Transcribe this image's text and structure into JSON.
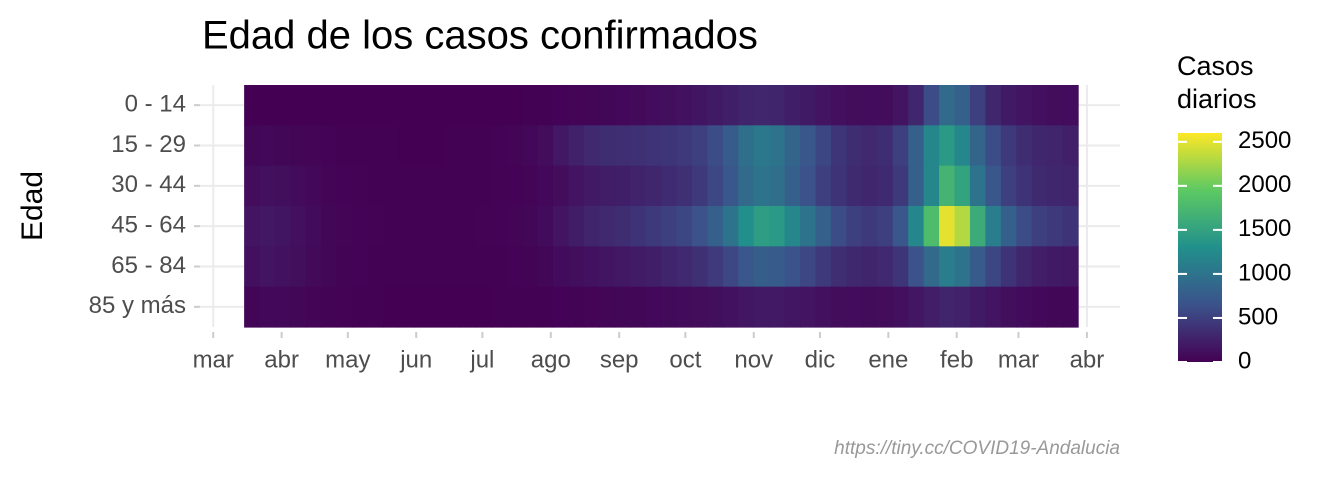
{
  "chart_data": {
    "type": "heatmap",
    "title": "Edad de los casos confirmados",
    "ylabel": "Edad",
    "caption": "https://tiny.cc/COVID19-Andalucia",
    "legend_title": [
      "Casos",
      "diarios"
    ],
    "x": [
      14,
      21,
      28,
      35,
      42,
      49,
      56,
      63,
      70,
      77,
      84,
      91,
      98,
      105,
      112,
      119,
      126,
      133,
      140,
      147,
      154,
      161,
      168,
      175,
      182,
      189,
      196,
      203,
      210,
      217,
      224,
      231,
      238,
      245,
      252,
      259,
      266,
      273,
      280,
      287,
      294,
      301,
      308,
      315,
      322,
      329,
      336,
      343,
      350,
      357,
      364,
      371,
      378,
      385
    ],
    "cell_width": 7,
    "xlim": [
      -6,
      411
    ],
    "xticks": [
      {
        "value": 0,
        "label": "mar"
      },
      {
        "value": 31,
        "label": "abr"
      },
      {
        "value": 61,
        "label": "may"
      },
      {
        "value": 92,
        "label": "jun"
      },
      {
        "value": 122,
        "label": "jul"
      },
      {
        "value": 153,
        "label": "ago"
      },
      {
        "value": 184,
        "label": "sep"
      },
      {
        "value": 214,
        "label": "oct"
      },
      {
        "value": 245,
        "label": "nov"
      },
      {
        "value": 275,
        "label": "dic"
      },
      {
        "value": 306,
        "label": "ene"
      },
      {
        "value": 337,
        "label": "feb"
      },
      {
        "value": 365,
        "label": "mar"
      },
      {
        "value": 396,
        "label": "abr"
      }
    ],
    "series": [
      {
        "name": "0 - 14",
        "values": [
          3,
          4,
          4,
          3,
          2,
          2,
          1,
          1,
          1,
          1,
          1,
          1,
          1,
          1,
          2,
          2,
          3,
          4,
          6,
          10,
          20,
          30,
          40,
          50,
          60,
          70,
          90,
          110,
          130,
          160,
          200,
          240,
          280,
          300,
          280,
          240,
          200,
          150,
          120,
          100,
          90,
          100,
          150,
          300,
          600,
          900,
          800,
          500,
          300,
          200,
          150,
          120,
          100,
          90
        ]
      },
      {
        "name": "15 - 29",
        "values": [
          50,
          60,
          50,
          40,
          30,
          20,
          12,
          8,
          6,
          5,
          4,
          4,
          4,
          6,
          8,
          12,
          20,
          30,
          60,
          100,
          180,
          260,
          320,
          350,
          360,
          380,
          400,
          420,
          450,
          500,
          600,
          750,
          950,
          1050,
          1000,
          850,
          700,
          550,
          420,
          350,
          320,
          350,
          500,
          800,
          1200,
          1400,
          1200,
          850,
          600,
          450,
          350,
          300,
          280,
          250
        ]
      },
      {
        "name": "30 - 44",
        "values": [
          100,
          120,
          110,
          80,
          55,
          35,
          20,
          14,
          10,
          7,
          6,
          6,
          6,
          7,
          8,
          10,
          14,
          20,
          35,
          55,
          100,
          150,
          190,
          220,
          240,
          270,
          300,
          340,
          380,
          450,
          560,
          700,
          900,
          1000,
          950,
          800,
          650,
          500,
          400,
          330,
          300,
          330,
          450,
          800,
          1200,
          1700,
          1500,
          1000,
          700,
          500,
          400,
          330,
          300,
          280
        ]
      },
      {
        "name": "45 - 64",
        "values": [
          150,
          180,
          160,
          120,
          80,
          50,
          30,
          20,
          15,
          10,
          8,
          8,
          8,
          10,
          12,
          15,
          20,
          30,
          50,
          80,
          150,
          220,
          280,
          320,
          350,
          400,
          450,
          500,
          550,
          650,
          800,
          1000,
          1300,
          1450,
          1400,
          1200,
          1000,
          800,
          600,
          500,
          450,
          500,
          700,
          1200,
          1800,
          2500,
          2300,
          1600,
          1100,
          800,
          600,
          500,
          450,
          400
        ]
      },
      {
        "name": "65 - 84",
        "values": [
          120,
          150,
          140,
          110,
          70,
          45,
          28,
          18,
          12,
          8,
          6,
          6,
          6,
          7,
          8,
          10,
          12,
          18,
          28,
          45,
          80,
          110,
          140,
          160,
          180,
          210,
          240,
          280,
          320,
          380,
          460,
          560,
          700,
          780,
          760,
          660,
          560,
          450,
          360,
          310,
          290,
          320,
          420,
          650,
          900,
          1100,
          1000,
          750,
          550,
          400,
          300,
          230,
          200,
          180
        ]
      },
      {
        "name": "85 y más",
        "values": [
          40,
          60,
          60,
          50,
          35,
          25,
          15,
          10,
          6,
          4,
          3,
          3,
          3,
          3,
          3,
          4,
          5,
          6,
          8,
          12,
          20,
          28,
          35,
          40,
          45,
          50,
          60,
          70,
          80,
          95,
          110,
          140,
          170,
          190,
          190,
          170,
          150,
          120,
          100,
          90,
          85,
          95,
          120,
          170,
          230,
          280,
          260,
          200,
          150,
          110,
          80,
          60,
          50,
          45
        ]
      }
    ],
    "zlim": [
      0,
      2600
    ],
    "zticks": [
      0,
      500,
      1000,
      1500,
      2000,
      2500
    ],
    "colormap": [
      "#440154",
      "#3b528b",
      "#21908c",
      "#5dc963",
      "#fde725"
    ],
    "grid": true
  }
}
